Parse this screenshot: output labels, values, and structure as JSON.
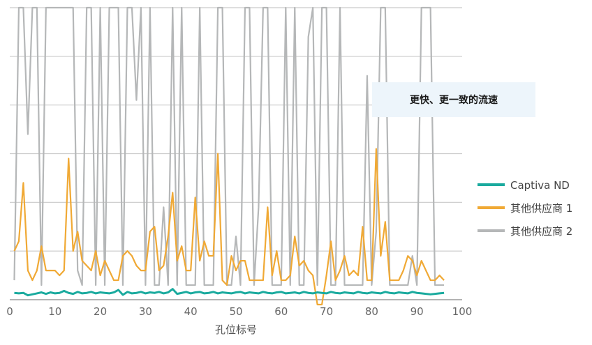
{
  "chart_data": {
    "type": "line",
    "xlabel": "孔位标号",
    "ylabel": "",
    "xlim": [
      0,
      100
    ],
    "xticks": [
      0,
      10,
      20,
      30,
      40,
      50,
      60,
      70,
      80,
      90,
      100
    ],
    "ylim": [
      0,
      6
    ],
    "y_gridlines": [
      1,
      2,
      3,
      4,
      5,
      6
    ],
    "y_tick_labels_shown": false,
    "x": [
      1,
      2,
      3,
      4,
      5,
      6,
      7,
      8,
      9,
      10,
      11,
      12,
      13,
      14,
      15,
      16,
      17,
      18,
      19,
      20,
      21,
      22,
      23,
      24,
      25,
      26,
      27,
      28,
      29,
      30,
      31,
      32,
      33,
      34,
      35,
      36,
      37,
      38,
      39,
      40,
      41,
      42,
      43,
      44,
      45,
      46,
      47,
      48,
      49,
      50,
      51,
      52,
      53,
      54,
      55,
      56,
      57,
      58,
      59,
      60,
      61,
      62,
      63,
      64,
      65,
      66,
      67,
      68,
      69,
      70,
      71,
      72,
      73,
      74,
      75,
      76,
      77,
      78,
      79,
      80,
      81,
      82,
      83,
      84,
      85,
      86,
      87,
      88,
      89,
      90,
      91,
      92,
      93,
      94,
      95,
      96
    ],
    "series": [
      {
        "name": "Captiva ND",
        "color": "#1aaa9e",
        "values": [
          0.14,
          0.13,
          0.14,
          0.09,
          0.11,
          0.13,
          0.15,
          0.12,
          0.15,
          0.13,
          0.14,
          0.18,
          0.14,
          0.12,
          0.16,
          0.13,
          0.14,
          0.16,
          0.13,
          0.15,
          0.14,
          0.13,
          0.15,
          0.2,
          0.1,
          0.16,
          0.13,
          0.14,
          0.16,
          0.13,
          0.15,
          0.14,
          0.16,
          0.13,
          0.15,
          0.22,
          0.12,
          0.14,
          0.16,
          0.13,
          0.15,
          0.16,
          0.13,
          0.14,
          0.16,
          0.13,
          0.15,
          0.14,
          0.13,
          0.15,
          0.16,
          0.13,
          0.15,
          0.14,
          0.13,
          0.16,
          0.14,
          0.13,
          0.15,
          0.16,
          0.13,
          0.14,
          0.15,
          0.13,
          0.16,
          0.14,
          0.13,
          0.15,
          0.14,
          0.13,
          0.16,
          0.14,
          0.13,
          0.15,
          0.14,
          0.13,
          0.16,
          0.14,
          0.13,
          0.15,
          0.14,
          0.13,
          0.16,
          0.14,
          0.13,
          0.15,
          0.14,
          0.13,
          0.16,
          0.14,
          0.13,
          0.12,
          0.11,
          0.12,
          0.13,
          0.14
        ]
      },
      {
        "name": "其他供应商 1",
        "color": "#f0a935",
        "values": [
          1.0,
          1.2,
          2.4,
          0.6,
          0.4,
          0.6,
          1.1,
          0.6,
          0.6,
          0.6,
          0.5,
          0.6,
          2.9,
          1.0,
          1.4,
          0.8,
          0.7,
          0.6,
          1.0,
          0.5,
          0.8,
          0.6,
          0.4,
          0.4,
          0.9,
          1.0,
          0.9,
          0.7,
          0.6,
          0.6,
          1.4,
          1.5,
          0.6,
          0.7,
          1.3,
          2.2,
          0.8,
          1.1,
          0.6,
          0.6,
          2.1,
          0.8,
          1.2,
          0.9,
          0.9,
          3.0,
          0.4,
          0.3,
          0.9,
          0.6,
          0.8,
          0.8,
          0.4,
          0.4,
          0.4,
          0.4,
          1.9,
          0.5,
          1.0,
          0.4,
          0.4,
          0.5,
          1.3,
          0.7,
          0.8,
          0.6,
          0.5,
          -0.1,
          -0.1,
          0.5,
          1.2,
          0.4,
          0.6,
          0.9,
          0.5,
          0.6,
          0.5,
          1.5,
          0.4,
          0.4,
          3.1,
          0.9,
          1.6,
          0.4,
          0.4,
          0.4,
          0.6,
          0.9,
          0.8,
          0.5,
          0.8,
          0.6,
          0.4,
          0.4,
          0.5,
          0.4
        ]
      },
      {
        "name": "其他供应商 2",
        "color": "#b5b7b8",
        "values": [
          0.4,
          6,
          6,
          3.4,
          6,
          6,
          0.3,
          6,
          6,
          6,
          6,
          6,
          6,
          6,
          0.6,
          0.3,
          6,
          6,
          0.3,
          6,
          0.3,
          6,
          6,
          6,
          0.3,
          6,
          6,
          4.1,
          6,
          0.3,
          6,
          0.3,
          0.3,
          1.9,
          0.3,
          6,
          0.3,
          6,
          0.3,
          0.3,
          0.3,
          6,
          0.3,
          0.3,
          0.3,
          6,
          6,
          0.3,
          0.3,
          1.3,
          0.3,
          6,
          6,
          0.3,
          1.9,
          6,
          6,
          0.3,
          0.3,
          0.3,
          6,
          0.3,
          6,
          0.3,
          0.3,
          5.4,
          6,
          0.3,
          6,
          6,
          0.3,
          0.3,
          6,
          0.3,
          0.3,
          0.3,
          0.3,
          0.3,
          4.6,
          0.3,
          1.4,
          6,
          6,
          0.3,
          0.3,
          0.3,
          0.3,
          0.3,
          0.9,
          0.3,
          6,
          6,
          6,
          0.3,
          0.3,
          0.3
        ]
      }
    ],
    "annotation": "更快、更一致的流速",
    "legend_position": "right",
    "grid": true
  }
}
